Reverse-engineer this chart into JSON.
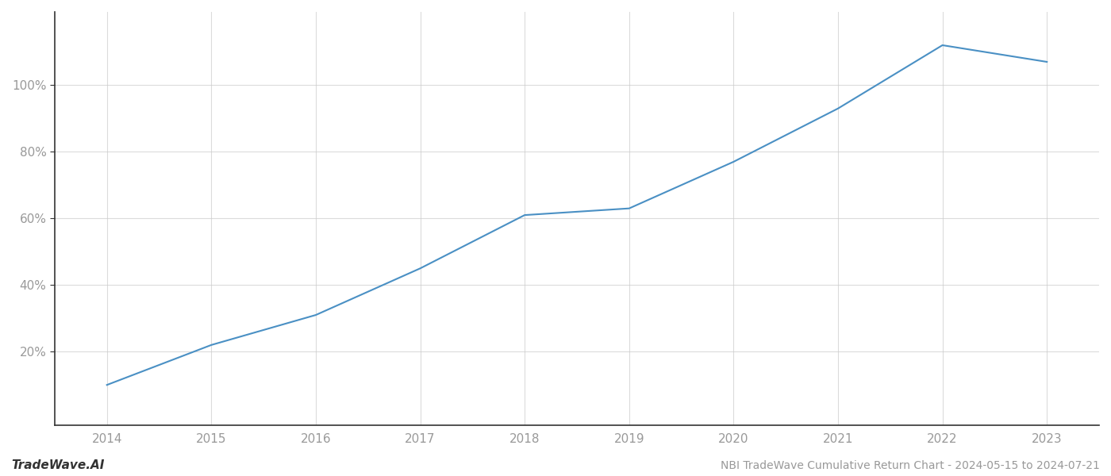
{
  "title": "NBI TradeWave Cumulative Return Chart - 2024-05-15 to 2024-07-21",
  "watermark": "TradeWave.AI",
  "line_color": "#4a90c4",
  "background_color": "#ffffff",
  "grid_color": "#cccccc",
  "x_values": [
    2014,
    2015,
    2016,
    2017,
    2018,
    2019,
    2020,
    2021,
    2022,
    2023
  ],
  "y_values": [
    0.1,
    0.22,
    0.31,
    0.45,
    0.61,
    0.63,
    0.77,
    0.93,
    1.12,
    1.07
  ],
  "ylim": [
    -0.02,
    1.22
  ],
  "yticks": [
    0.2,
    0.4,
    0.6,
    0.8,
    1.0
  ],
  "xlim": [
    2013.5,
    2023.5
  ],
  "line_width": 1.5,
  "tick_label_color": "#999999",
  "left_spine_color": "#333333",
  "bottom_spine_color": "#333333",
  "grid_color_alpha": 0.7,
  "footer_fontsize": 10,
  "watermark_fontsize": 11,
  "tick_fontsize": 11
}
